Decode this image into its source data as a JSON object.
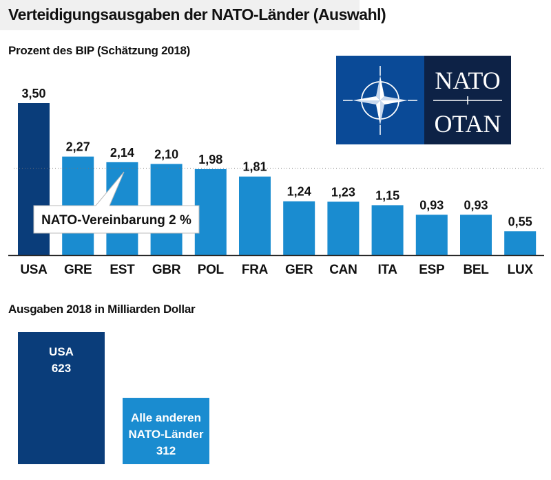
{
  "title": "Verteidigungsausgaben der NATO-Länder (Auswahl)",
  "colors": {
    "usa": "#0a3d7a",
    "others": "#1a8cd0",
    "nato_blue": "#0a4a97",
    "nato_dark": "#0d2246"
  },
  "logo": {
    "top": "NATO",
    "bottom": "OTAN"
  },
  "chart_data": [
    {
      "type": "bar",
      "title": "Prozent des BIP (Schätzung 2018)",
      "categories": [
        "USA",
        "GRE",
        "EST",
        "GBR",
        "POL",
        "FRA",
        "GER",
        "CAN",
        "ITA",
        "ESP",
        "BEL",
        "LUX"
      ],
      "values": [
        3.5,
        2.27,
        2.14,
        2.1,
        1.98,
        1.81,
        1.24,
        1.23,
        1.15,
        0.93,
        0.93,
        0.55
      ],
      "value_labels": [
        "3,50",
        "2,27",
        "2,14",
        "2,10",
        "1,98",
        "1,81",
        "1,24",
        "1,23",
        "1,15",
        "0,93",
        "0,93",
        "0,55"
      ],
      "highlight": "USA",
      "reference_line": {
        "value": 2.0,
        "label": "NATO-Vereinbarung 2 %"
      },
      "ylim": [
        0,
        3.5
      ]
    },
    {
      "type": "bar",
      "title": "Ausgaben 2018 in Milliarden Dollar",
      "categories": [
        "USA",
        "Alle anderen NATO-Länder"
      ],
      "label_lines": [
        [
          "USA",
          "623"
        ],
        [
          "Alle anderen",
          "NATO-Länder",
          "312"
        ]
      ],
      "values": [
        623,
        312
      ],
      "ylim": [
        0,
        623
      ]
    }
  ]
}
